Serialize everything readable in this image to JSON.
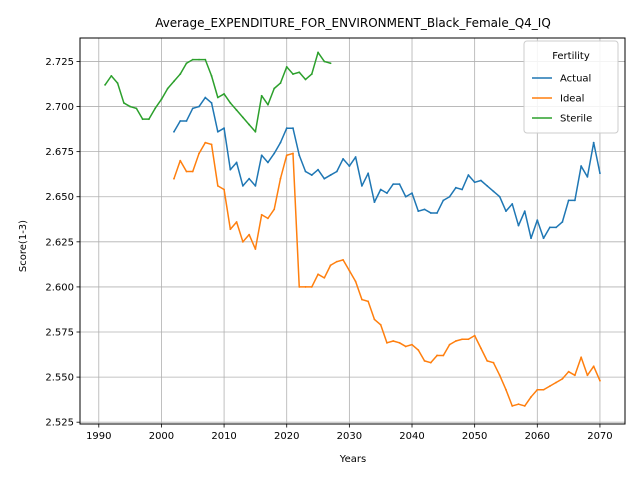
{
  "chart_data": {
    "type": "line",
    "title": "Average_EXPENDITURE_FOR_ENVIRONMENT_Black_Female_Q4_IQ",
    "xlabel": "Years",
    "ylabel": "Score(1-3)",
    "xlim": [
      1987,
      2074
    ],
    "ylim": [
      2.524,
      2.738
    ],
    "xticks": [
      1990,
      2000,
      2010,
      2020,
      2030,
      2040,
      2050,
      2060,
      2070
    ],
    "xtick_labels": [
      "1990",
      "2000",
      "2010",
      "2020",
      "2030",
      "2040",
      "2050",
      "2060",
      "2070"
    ],
    "yticks": [
      2.525,
      2.55,
      2.575,
      2.6,
      2.625,
      2.65,
      2.675,
      2.7,
      2.725
    ],
    "ytick_labels": [
      "2.525",
      "2.550",
      "2.575",
      "2.600",
      "2.625",
      "2.650",
      "2.675",
      "2.700",
      "2.725"
    ],
    "grid": true,
    "legend": {
      "title": "Fertility",
      "position": "top-right"
    },
    "series": [
      {
        "name": "Actual",
        "color": "#1f77b4",
        "x": [
          2002,
          2003,
          2004,
          2005,
          2006,
          2007,
          2008,
          2009,
          2010,
          2011,
          2012,
          2013,
          2014,
          2015,
          2016,
          2017,
          2018,
          2019,
          2020,
          2021,
          2022,
          2023,
          2024,
          2025,
          2026,
          2027,
          2028,
          2029,
          2030,
          2031,
          2032,
          2033,
          2034,
          2035,
          2036,
          2037,
          2038,
          2039,
          2040,
          2041,
          2042,
          2043,
          2044,
          2045,
          2046,
          2047,
          2048,
          2049,
          2050,
          2051,
          2052,
          2053,
          2054,
          2055,
          2056,
          2057,
          2058,
          2059,
          2060,
          2061,
          2062,
          2063,
          2064,
          2065,
          2066,
          2067,
          2068,
          2069,
          2070
        ],
        "y": [
          2.686,
          2.692,
          2.692,
          2.699,
          2.7,
          2.705,
          2.702,
          2.686,
          2.688,
          2.665,
          2.669,
          2.656,
          2.66,
          2.656,
          2.673,
          2.669,
          2.674,
          2.68,
          2.688,
          2.688,
          2.673,
          2.664,
          2.662,
          2.665,
          2.66,
          2.662,
          2.664,
          2.671,
          2.667,
          2.672,
          2.656,
          2.663,
          2.647,
          2.654,
          2.652,
          2.657,
          2.657,
          2.65,
          2.652,
          2.642,
          2.643,
          2.641,
          2.641,
          2.648,
          2.65,
          2.655,
          2.654,
          2.662,
          2.658,
          2.659,
          2.656,
          2.653,
          2.65,
          2.642,
          2.646,
          2.634,
          2.642,
          2.627,
          2.637,
          2.627,
          2.633,
          2.633,
          2.636,
          2.648,
          2.648,
          2.667,
          2.661,
          2.68,
          2.663
        ]
      },
      {
        "name": "Ideal",
        "color": "#ff7f0e",
        "x": [
          2002,
          2003,
          2004,
          2005,
          2006,
          2007,
          2008,
          2009,
          2010,
          2011,
          2012,
          2013,
          2014,
          2015,
          2016,
          2017,
          2018,
          2019,
          2020,
          2021,
          2022,
          2023,
          2024,
          2025,
          2026,
          2027,
          2028,
          2029,
          2030,
          2031,
          2032,
          2033,
          2034,
          2035,
          2036,
          2037,
          2038,
          2039,
          2040,
          2041,
          2042,
          2043,
          2044,
          2045,
          2046,
          2047,
          2048,
          2049,
          2050,
          2051,
          2052,
          2053,
          2054,
          2055,
          2056,
          2057,
          2058,
          2059,
          2060,
          2061,
          2062,
          2063,
          2064,
          2065,
          2066,
          2067,
          2068,
          2069,
          2070
        ],
        "y": [
          2.66,
          2.67,
          2.664,
          2.664,
          2.674,
          2.68,
          2.679,
          2.656,
          2.654,
          2.632,
          2.636,
          2.625,
          2.629,
          2.621,
          2.64,
          2.638,
          2.643,
          2.66,
          2.673,
          2.674,
          2.6,
          2.6,
          2.6,
          2.607,
          2.605,
          2.612,
          2.614,
          2.615,
          2.609,
          2.603,
          2.593,
          2.592,
          2.582,
          2.579,
          2.569,
          2.57,
          2.569,
          2.567,
          2.568,
          2.565,
          2.559,
          2.558,
          2.562,
          2.562,
          2.568,
          2.57,
          2.571,
          2.571,
          2.573,
          2.566,
          2.559,
          2.558,
          2.551,
          2.543,
          2.534,
          2.535,
          2.534,
          2.539,
          2.543,
          2.543,
          2.545,
          2.547,
          2.549,
          2.553,
          2.551,
          2.561,
          2.551,
          2.556,
          2.548
        ]
      },
      {
        "name": "Sterile",
        "color": "#2ca02c",
        "x": [
          1991,
          1992,
          1993,
          1994,
          1995,
          1996,
          1997,
          1998,
          1999,
          2000,
          2001,
          2002,
          2003,
          2004,
          2005,
          2006,
          2007,
          2008,
          2009,
          2010,
          2011,
          2012,
          2013,
          2014,
          2015,
          2016,
          2017,
          2018,
          2019,
          2020,
          2021,
          2022,
          2023,
          2024,
          2025,
          2026,
          2027
        ],
        "y": [
          2.712,
          2.717,
          2.713,
          2.702,
          2.7,
          2.699,
          2.693,
          2.693,
          2.699,
          2.704,
          2.71,
          2.714,
          2.718,
          2.724,
          2.726,
          2.726,
          2.726,
          2.717,
          2.705,
          2.707,
          2.702,
          2.698,
          2.694,
          2.69,
          2.686,
          2.706,
          2.701,
          2.71,
          2.713,
          2.722,
          2.718,
          2.719,
          2.715,
          2.718,
          2.73,
          2.725,
          2.724
        ]
      }
    ]
  }
}
